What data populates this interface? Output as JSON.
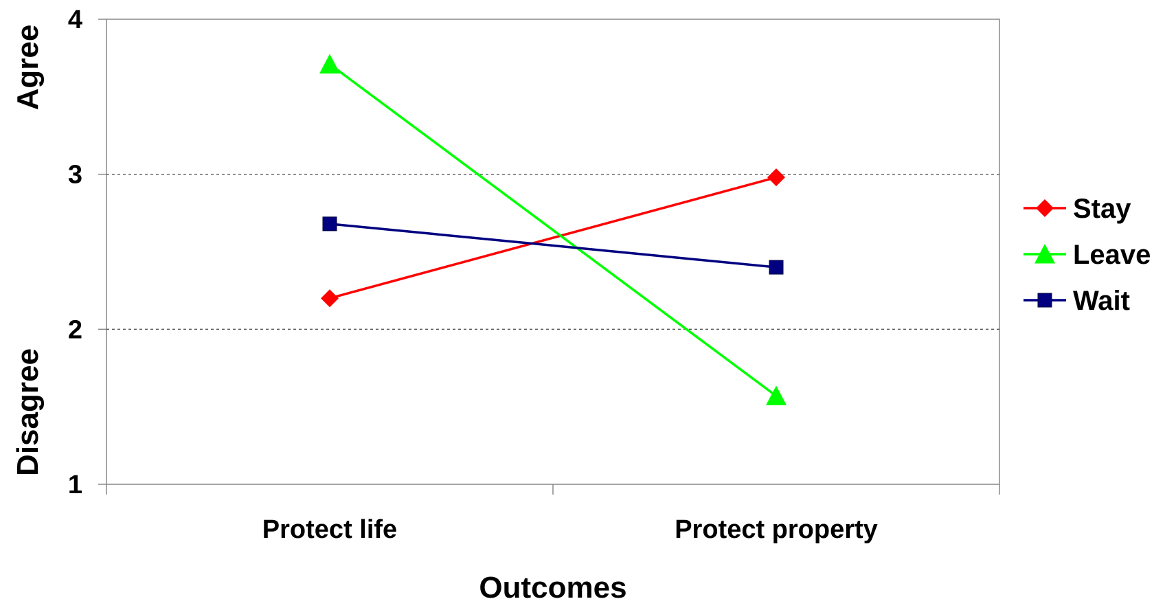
{
  "chart_data": {
    "type": "line",
    "categories": [
      "Protect life",
      "Protect property"
    ],
    "series": [
      {
        "name": "Stay",
        "values": [
          2.2,
          2.98
        ],
        "color": "#ff0000",
        "marker": "diamond"
      },
      {
        "name": "Leave",
        "values": [
          3.71,
          1.57
        ],
        "color": "#00ff00",
        "marker": "triangle"
      },
      {
        "name": "Wait",
        "values": [
          2.68,
          2.4
        ],
        "color": "#000080",
        "marker": "square"
      }
    ],
    "xlabel": "Outcomes",
    "ylabel_top": "Agree",
    "ylabel_bottom": "Disagree",
    "ylim": [
      1,
      4
    ],
    "yticks": [
      "1",
      "2",
      "3",
      "4"
    ],
    "grid": "dashed horizontal at 2 and 3",
    "legend_position": "right"
  }
}
